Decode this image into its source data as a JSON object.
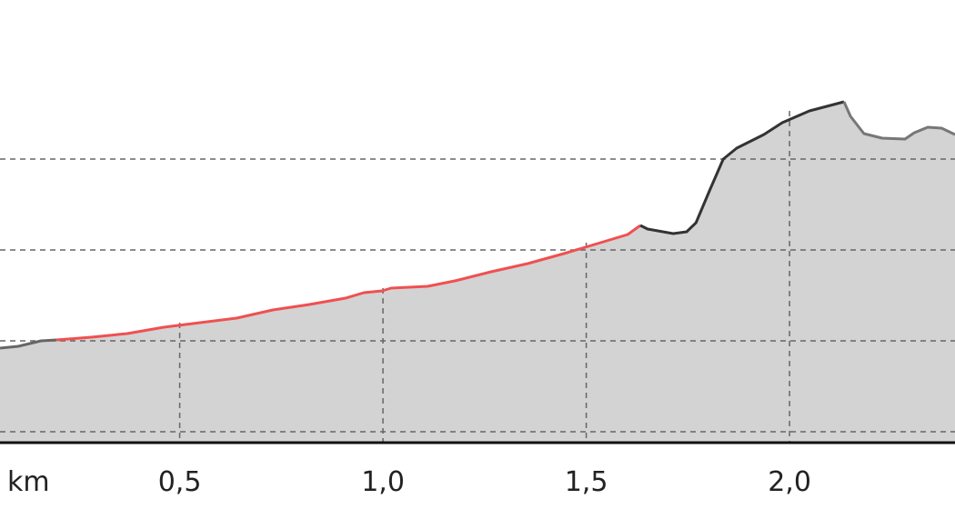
{
  "chart_data": {
    "type": "area",
    "title": "",
    "xlabel": "km",
    "ylabel": "",
    "xlim": [
      0.058,
      2.407
    ],
    "ylim": [
      -0.12,
      4.75
    ],
    "x_ticks": [
      {
        "value": 0.5,
        "label": "0,5"
      },
      {
        "value": 1.0,
        "label": "1,0"
      },
      {
        "value": 1.5,
        "label": "1,5"
      },
      {
        "value": 2.0,
        "label": "2,0"
      }
    ],
    "y_gridlines": [
      0,
      1,
      2,
      3
    ],
    "grid": true,
    "fill_color": "#d3d3d3",
    "segments": [
      {
        "color": "#666666",
        "points": [
          [
            0.058,
            0.92
          ],
          [
            0.103,
            0.94
          ],
          [
            0.159,
            1.0
          ],
          [
            0.197,
            1.01
          ]
        ]
      },
      {
        "color": "#f05050",
        "points": [
          [
            0.197,
            1.01
          ],
          [
            0.282,
            1.04
          ],
          [
            0.371,
            1.08
          ],
          [
            0.461,
            1.15
          ],
          [
            0.55,
            1.2
          ],
          [
            0.64,
            1.25
          ],
          [
            0.729,
            1.34
          ],
          [
            0.819,
            1.4
          ],
          [
            0.908,
            1.47
          ],
          [
            0.953,
            1.53
          ],
          [
            0.998,
            1.55
          ],
          [
            1.02,
            1.58
          ],
          [
            1.11,
            1.6
          ],
          [
            1.177,
            1.66
          ],
          [
            1.266,
            1.76
          ],
          [
            1.356,
            1.85
          ],
          [
            1.445,
            1.96
          ],
          [
            1.535,
            2.08
          ],
          [
            1.602,
            2.17
          ],
          [
            1.633,
            2.27
          ]
        ]
      },
      {
        "color": "#333333",
        "points": [
          [
            1.633,
            2.27
          ],
          [
            1.651,
            2.23
          ],
          [
            1.714,
            2.18
          ],
          [
            1.747,
            2.2
          ],
          [
            1.77,
            2.3
          ],
          [
            1.803,
            2.65
          ],
          [
            1.837,
            3.0
          ],
          [
            1.87,
            3.12
          ],
          [
            1.937,
            3.27
          ],
          [
            1.982,
            3.4
          ],
          [
            2.049,
            3.53
          ],
          [
            2.134,
            3.63
          ]
        ]
      },
      {
        "color": "#777777",
        "points": [
          [
            2.134,
            3.63
          ],
          [
            2.15,
            3.47
          ],
          [
            2.183,
            3.28
          ],
          [
            2.228,
            3.23
          ],
          [
            2.284,
            3.22
          ],
          [
            2.307,
            3.29
          ],
          [
            2.34,
            3.35
          ],
          [
            2.374,
            3.34
          ],
          [
            2.407,
            3.27
          ]
        ]
      }
    ]
  }
}
